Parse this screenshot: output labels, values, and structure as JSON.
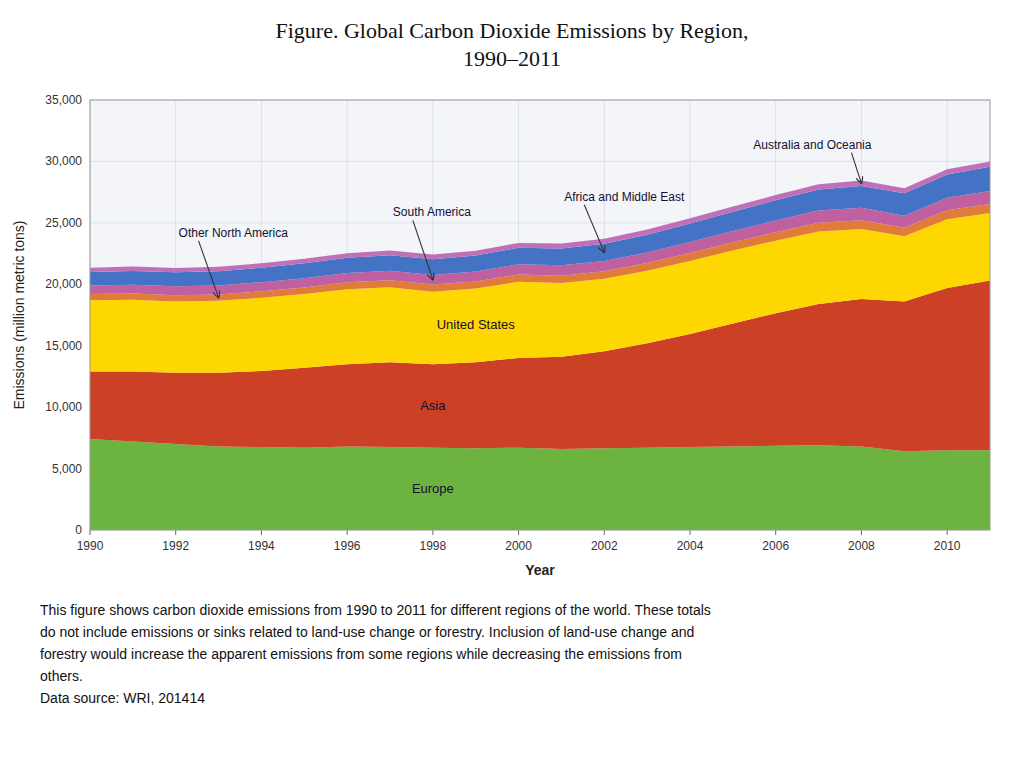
{
  "chart_data": {
    "type": "area",
    "stacked": true,
    "grid": true,
    "title": "Figure. Global Carbon Dioxide Emissions by Region,\n1990–2011",
    "x_label": "Year",
    "y_label": "Emissions (million metric tons)",
    "caption": [
      "This figure shows carbon dioxide emissions from 1990 to 2011 for different regions of the world. These totals",
      "do not include emissions or sinks related to land-use change or forestry. Inclusion of land-use change and",
      "forestry would increase the apparent emissions from some regions while decreasing the emissions from",
      "others.",
      "Data source: WRI, 201414"
    ],
    "x": [
      1990,
      1991,
      1992,
      1993,
      1994,
      1995,
      1996,
      1997,
      1998,
      1999,
      2000,
      2001,
      2002,
      2003,
      2004,
      2005,
      2006,
      2007,
      2008,
      2009,
      2010,
      2011
    ],
    "xlim": [
      1990,
      2011
    ],
    "xticks": [
      1990,
      1992,
      1994,
      1996,
      1998,
      2000,
      2002,
      2004,
      2006,
      2008,
      2010
    ],
    "ylim": [
      0,
      35000
    ],
    "yticks": [
      0,
      {
        "value": 5000,
        "label": "5,000"
      },
      {
        "value": 10000,
        "label": "10,000"
      },
      {
        "value": 15000,
        "label": "15,000"
      },
      {
        "value": 20000,
        "label": "20,000"
      },
      {
        "value": 25000,
        "label": "25,000"
      },
      {
        "value": 30000,
        "label": "30,000"
      },
      {
        "value": 35000,
        "label": "35,000"
      }
    ],
    "series": [
      {
        "name": "Europe",
        "color": "#6db33f",
        "values": [
          7400,
          7200,
          7000,
          6800,
          6750,
          6700,
          6800,
          6750,
          6700,
          6650,
          6700,
          6600,
          6650,
          6700,
          6750,
          6800,
          6850,
          6900,
          6800,
          6400,
          6500,
          6500
        ]
      },
      {
        "name": "Asia",
        "color": "#cc4125",
        "values": [
          5500,
          5700,
          5800,
          6000,
          6200,
          6500,
          6700,
          6900,
          6800,
          7000,
          7300,
          7500,
          7900,
          8500,
          9200,
          10000,
          10800,
          11500,
          12000,
          12200,
          13200,
          13800
        ]
      },
      {
        "name": "United States",
        "color": "#ffd700",
        "values": [
          5800,
          5850,
          5800,
          5850,
          5950,
          6000,
          6100,
          6100,
          5900,
          6000,
          6200,
          6000,
          5900,
          5900,
          5950,
          5950,
          5900,
          5900,
          5700,
          5300,
          5600,
          5500
        ]
      },
      {
        "name": "Other North America",
        "color": "#e07b39",
        "values": [
          500,
          510,
          515,
          520,
          530,
          545,
          560,
          570,
          575,
          585,
          600,
          600,
          610,
          630,
          650,
          670,
          690,
          710,
          720,
          700,
          720,
          740
        ]
      },
      {
        "name": "South America",
        "color": "#c060a0",
        "values": [
          700,
          710,
          720,
          730,
          740,
          750,
          760,
          780,
          790,
          800,
          830,
          840,
          840,
          860,
          890,
          920,
          950,
          990,
          1000,
          980,
          1030,
          1060
        ]
      },
      {
        "name": "Africa and Middle East",
        "color": "#4472c4",
        "values": [
          1100,
          1120,
          1140,
          1160,
          1180,
          1210,
          1240,
          1270,
          1280,
          1300,
          1340,
          1370,
          1400,
          1450,
          1510,
          1570,
          1640,
          1710,
          1780,
          1820,
          1890,
          1960
        ]
      },
      {
        "name": "Australia and Oceania",
        "color": "#c070b8",
        "values": [
          350,
          355,
          355,
          360,
          365,
          370,
          375,
          380,
          385,
          390,
          400,
          405,
          410,
          415,
          420,
          425,
          430,
          435,
          440,
          420,
          430,
          440
        ]
      }
    ]
  }
}
